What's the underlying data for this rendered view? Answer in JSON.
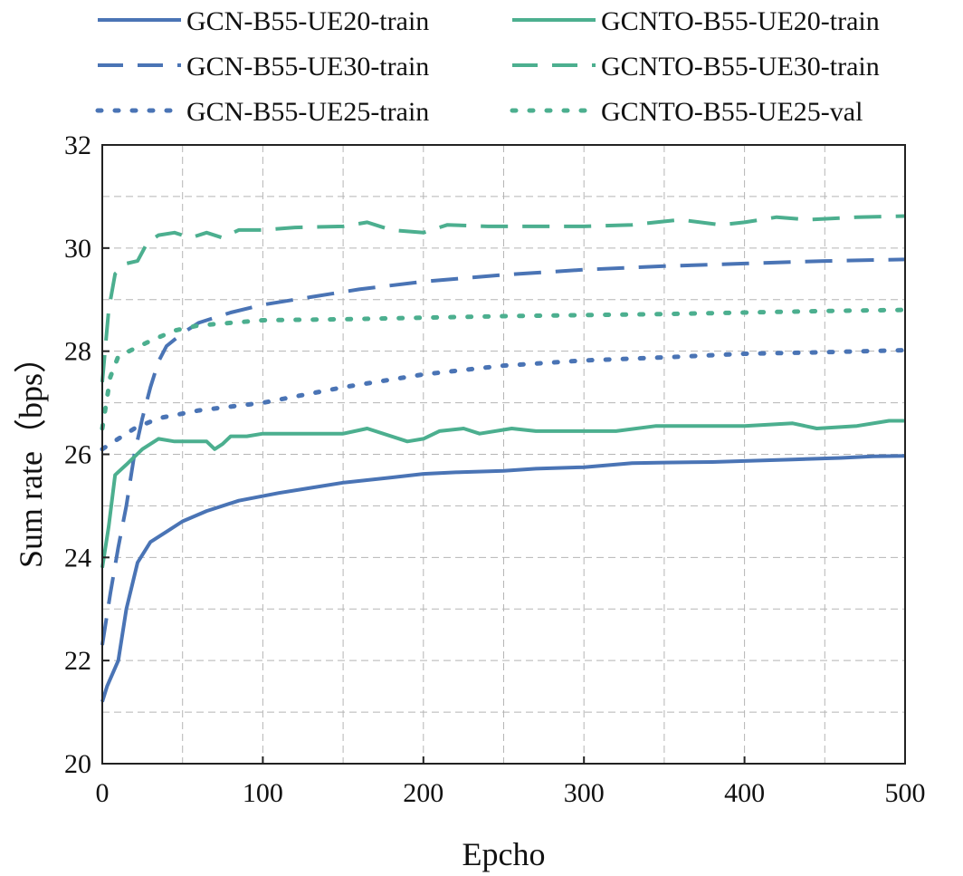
{
  "chart_data": {
    "type": "line",
    "title": "",
    "xlabel": "Epcho",
    "ylabel": "Sum rate（bps）",
    "xlim": [
      0,
      500
    ],
    "ylim": [
      20,
      32
    ],
    "x_ticks": [
      "0",
      "100",
      "200",
      "300",
      "400",
      "500"
    ],
    "y_ticks": [
      "20",
      "22",
      "24",
      "26",
      "28",
      "30",
      "32"
    ],
    "grid": true,
    "legend_position": "top",
    "series": [
      {
        "name": "GCN-B55-UE20-train",
        "color": "#4a74b5",
        "style": "solid",
        "points": [
          [
            0,
            21.2
          ],
          [
            3,
            21.5
          ],
          [
            10,
            22
          ],
          [
            15,
            23
          ],
          [
            22,
            23.9
          ],
          [
            30,
            24.3
          ],
          [
            40,
            24.5
          ],
          [
            50,
            24.7
          ],
          [
            65,
            24.9
          ],
          [
            85,
            25.1
          ],
          [
            110,
            25.25
          ],
          [
            130,
            25.35
          ],
          [
            150,
            25.45
          ],
          [
            180,
            25.55
          ],
          [
            200,
            25.62
          ],
          [
            220,
            25.65
          ],
          [
            250,
            25.68
          ],
          [
            270,
            25.72
          ],
          [
            300,
            25.75
          ],
          [
            330,
            25.83
          ],
          [
            350,
            25.84
          ],
          [
            380,
            25.85
          ],
          [
            400,
            25.87
          ],
          [
            430,
            25.9
          ],
          [
            460,
            25.93
          ],
          [
            480,
            25.96
          ],
          [
            500,
            25.97
          ]
        ]
      },
      {
        "name": "GCN-B55-UE30-train",
        "color": "#4a74b5",
        "style": "dashed",
        "points": [
          [
            0,
            22.3
          ],
          [
            5,
            23.3
          ],
          [
            10,
            24.2
          ],
          [
            15,
            25.0
          ],
          [
            20,
            26.0
          ],
          [
            25,
            26.7
          ],
          [
            30,
            27.3
          ],
          [
            35,
            27.8
          ],
          [
            40,
            28.1
          ],
          [
            50,
            28.35
          ],
          [
            60,
            28.55
          ],
          [
            80,
            28.75
          ],
          [
            100,
            28.9
          ],
          [
            130,
            29.05
          ],
          [
            160,
            29.2
          ],
          [
            200,
            29.35
          ],
          [
            250,
            29.48
          ],
          [
            300,
            29.58
          ],
          [
            350,
            29.65
          ],
          [
            400,
            29.7
          ],
          [
            450,
            29.75
          ],
          [
            500,
            29.78
          ]
        ]
      },
      {
        "name": "GCN-B55-UE25-train",
        "color": "#4a74b5",
        "style": "dotted",
        "points": [
          [
            0,
            26.1
          ],
          [
            10,
            26.3
          ],
          [
            20,
            26.5
          ],
          [
            35,
            26.7
          ],
          [
            60,
            26.85
          ],
          [
            100,
            27.0
          ],
          [
            150,
            27.3
          ],
          [
            200,
            27.55
          ],
          [
            250,
            27.72
          ],
          [
            300,
            27.82
          ],
          [
            350,
            27.88
          ],
          [
            400,
            27.95
          ],
          [
            450,
            27.98
          ],
          [
            500,
            28.02
          ]
        ]
      },
      {
        "name": "GCNTO-B55-UE20-train",
        "color": "#4caf8f",
        "style": "solid",
        "points": [
          [
            0,
            23.8
          ],
          [
            4,
            24.6
          ],
          [
            8,
            25.6
          ],
          [
            15,
            25.8
          ],
          [
            25,
            26.1
          ],
          [
            35,
            26.3
          ],
          [
            45,
            26.25
          ],
          [
            55,
            26.25
          ],
          [
            65,
            26.25
          ],
          [
            70,
            26.1
          ],
          [
            75,
            26.2
          ],
          [
            80,
            26.35
          ],
          [
            90,
            26.35
          ],
          [
            100,
            26.4
          ],
          [
            120,
            26.4
          ],
          [
            150,
            26.4
          ],
          [
            165,
            26.5
          ],
          [
            190,
            26.25
          ],
          [
            200,
            26.3
          ],
          [
            210,
            26.45
          ],
          [
            225,
            26.5
          ],
          [
            235,
            26.4
          ],
          [
            255,
            26.5
          ],
          [
            270,
            26.45
          ],
          [
            300,
            26.45
          ],
          [
            320,
            26.45
          ],
          [
            345,
            26.55
          ],
          [
            400,
            26.55
          ],
          [
            430,
            26.6
          ],
          [
            445,
            26.5
          ],
          [
            470,
            26.55
          ],
          [
            490,
            26.65
          ],
          [
            500,
            26.65
          ]
        ]
      },
      {
        "name": "GCNTO-B55-UE30-train",
        "color": "#4caf8f",
        "style": "dashed",
        "points": [
          [
            0,
            27.4
          ],
          [
            4,
            28.8
          ],
          [
            8,
            29.5
          ],
          [
            15,
            29.7
          ],
          [
            22,
            29.75
          ],
          [
            28,
            30.1
          ],
          [
            35,
            30.25
          ],
          [
            45,
            30.3
          ],
          [
            55,
            30.2
          ],
          [
            65,
            30.3
          ],
          [
            75,
            30.2
          ],
          [
            85,
            30.35
          ],
          [
            100,
            30.35
          ],
          [
            120,
            30.4
          ],
          [
            150,
            30.42
          ],
          [
            165,
            30.5
          ],
          [
            180,
            30.35
          ],
          [
            200,
            30.3
          ],
          [
            215,
            30.45
          ],
          [
            240,
            30.42
          ],
          [
            270,
            30.42
          ],
          [
            300,
            30.42
          ],
          [
            330,
            30.45
          ],
          [
            360,
            30.55
          ],
          [
            385,
            30.45
          ],
          [
            400,
            30.5
          ],
          [
            420,
            30.6
          ],
          [
            440,
            30.55
          ],
          [
            470,
            30.6
          ],
          [
            500,
            30.62
          ]
        ]
      },
      {
        "name": "GCNTO-B55-UE25-val",
        "color": "#4caf8f",
        "style": "dotted",
        "points": [
          [
            0,
            26.5
          ],
          [
            5,
            27.5
          ],
          [
            10,
            27.9
          ],
          [
            20,
            28.05
          ],
          [
            30,
            28.2
          ],
          [
            45,
            28.4
          ],
          [
            60,
            28.5
          ],
          [
            80,
            28.55
          ],
          [
            100,
            28.6
          ],
          [
            150,
            28.62
          ],
          [
            200,
            28.65
          ],
          [
            250,
            28.68
          ],
          [
            300,
            28.7
          ],
          [
            350,
            28.72
          ],
          [
            400,
            28.75
          ],
          [
            450,
            28.78
          ],
          [
            500,
            28.8
          ]
        ]
      }
    ]
  }
}
